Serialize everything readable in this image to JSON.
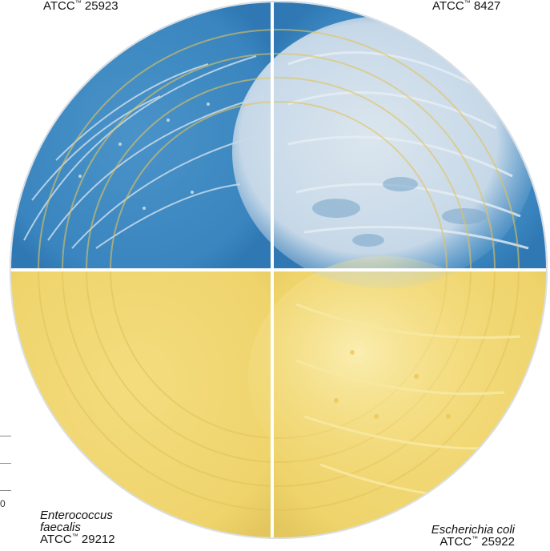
{
  "labels": {
    "top_left": {
      "atcc_prefix": "ATCC",
      "tm": "™",
      "atcc_number": "25923"
    },
    "top_right": {
      "atcc_prefix": "ATCC",
      "tm": "™",
      "atcc_number": "8427"
    },
    "bottom_left": {
      "species_line1": "Enterococcus",
      "species_line2": "faecalis",
      "atcc_prefix": "ATCC",
      "tm": "™",
      "atcc_number": "29212"
    },
    "bottom_right": {
      "species": "Escherichia coli",
      "atcc_prefix": "ATCC",
      "tm": "™",
      "atcc_number": "25922"
    }
  },
  "margin_digit": "0",
  "colors": {
    "blue_quadrant": "#3b86c0",
    "blue_growth": "#c9dceb",
    "yellow_quadrant": "#f1d774",
    "yellow_light": "#f6e8a6",
    "divider": "#ffffff"
  }
}
